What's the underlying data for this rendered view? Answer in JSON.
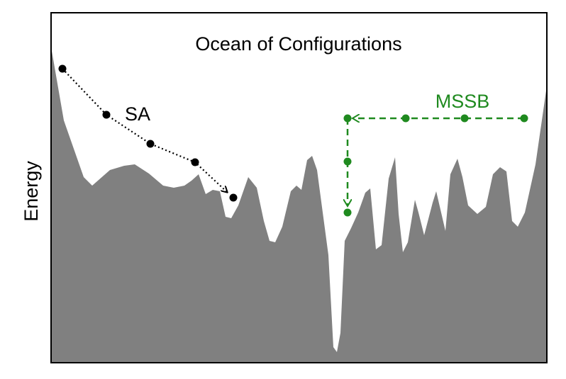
{
  "title": "Ocean of Configurations",
  "y_label": "Energy",
  "paths": [
    {
      "label": "SA"
    },
    {
      "label": "MSSB"
    }
  ]
}
